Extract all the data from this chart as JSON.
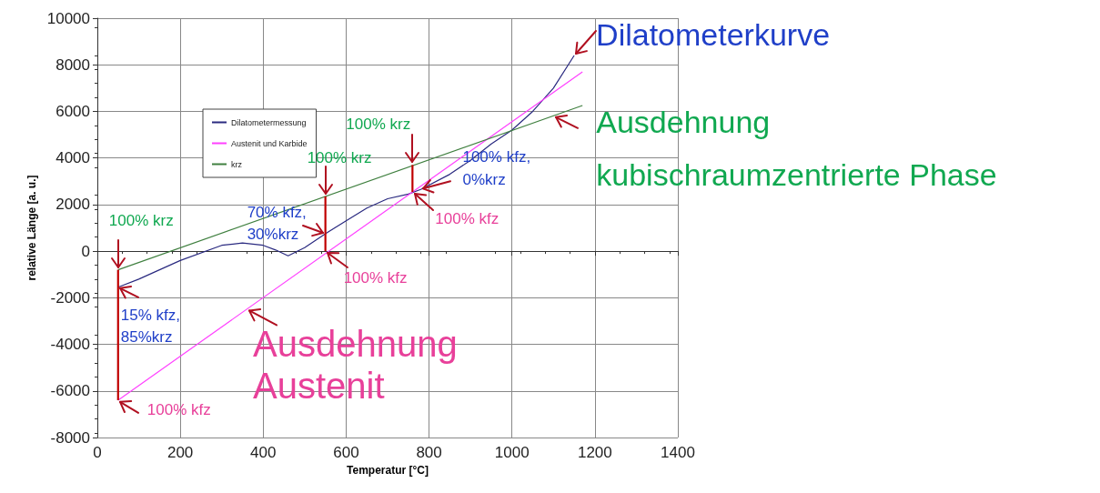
{
  "chart_data": {
    "type": "line",
    "xlabel": "Temperatur [°C]",
    "ylabel": "relative Länge [a. u.]",
    "xlim": [
      0,
      1400
    ],
    "xticks": [
      0,
      200,
      400,
      600,
      800,
      1000,
      1200,
      1400
    ],
    "ylim": [
      -8000,
      10000
    ],
    "yticks": [
      -8000,
      -6000,
      -4000,
      -2000,
      0,
      2000,
      4000,
      6000,
      8000,
      10000
    ],
    "grid": true,
    "legend": "top left",
    "marker": "none",
    "line_style": "solid",
    "series": [
      {
        "name": "Dilatometermessung",
        "color": "#2a2a80",
        "x": [
          50,
          100,
          200,
          300,
          350,
          400,
          430,
          460,
          500,
          550,
          600,
          650,
          700,
          750,
          780,
          850,
          900,
          950,
          1000,
          1050,
          1100,
          1150
        ],
        "values": [
          -1550,
          -1200,
          -400,
          250,
          350,
          250,
          50,
          -200,
          150,
          750,
          1300,
          1850,
          2250,
          2450,
          2650,
          3300,
          3900,
          4600,
          5200,
          6000,
          7000,
          8400
        ]
      },
      {
        "name": "Austenit und Karbide",
        "color": "#ff40ff",
        "x": [
          50,
          1170
        ],
        "values": [
          -6400,
          7700
        ]
      },
      {
        "name": "krz",
        "color": "#408040",
        "x": [
          50,
          1170
        ],
        "values": [
          -800,
          6250
        ]
      },
      {
        "color": "#c00000",
        "x": [
          50,
          50
        ],
        "values": [
          -800,
          -6400
        ]
      },
      {
        "color": "#c00000",
        "x": [
          550,
          550
        ],
        "values": [
          2350,
          0
        ]
      },
      {
        "color": "#c00000",
        "x": [
          760,
          760
        ],
        "values": [
          3700,
          2540
        ]
      }
    ],
    "annotations": [
      {
        "text": "Dilatometerkurve",
        "x": 1150,
        "y": 8400
      },
      {
        "text": "Ausdehnung\nkubischraumzentrierte Phase",
        "x": 1100,
        "y": 5805
      },
      {
        "text": "Ausdehnung\nAustenit",
        "x": 360,
        "y": -2497
      },
      {
        "text": "100% krz",
        "x": 50,
        "y": -800
      },
      {
        "text": "15% kfz,\n85%krz",
        "x": 50,
        "y": -1550
      },
      {
        "text": "100% kfz",
        "x": 50,
        "y": -6400
      },
      {
        "text": "100% krz",
        "x": 550,
        "y": 2350
      },
      {
        "text": "70% kfz,\n30%krz",
        "x": 550,
        "y": 750
      },
      {
        "text": "100% kfz",
        "x": 550,
        "y": 0
      },
      {
        "text": "100% krz",
        "x": 760,
        "y": 3700
      },
      {
        "text": "100% kfz,\n0%krz",
        "x": 780,
        "y": 2650
      },
      {
        "text": "100% kfz",
        "x": 760,
        "y": 2540
      }
    ]
  }
}
